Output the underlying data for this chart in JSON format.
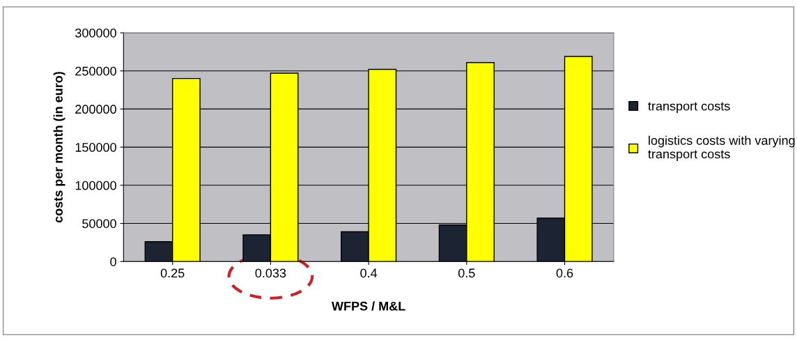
{
  "chart_data": {
    "type": "bar",
    "xlabel": "WFPS / M&L",
    "ylabel": "costs per month (in euro)",
    "categories": [
      "0.25",
      "0.033",
      "0.4",
      "0.5",
      "0.6"
    ],
    "series": [
      {
        "name": "transport costs",
        "color": "#1c2333",
        "values": [
          26000,
          35000,
          39000,
          48000,
          57000
        ]
      },
      {
        "name": "logistics costs with varying transport costs",
        "color": "#ffff00",
        "values": [
          240000,
          247000,
          252000,
          261000,
          269000
        ]
      }
    ],
    "ylim": [
      0,
      300000
    ],
    "yticks": [
      0,
      50000,
      100000,
      150000,
      200000,
      250000,
      300000
    ],
    "grid": "y",
    "legend": "right"
  }
}
